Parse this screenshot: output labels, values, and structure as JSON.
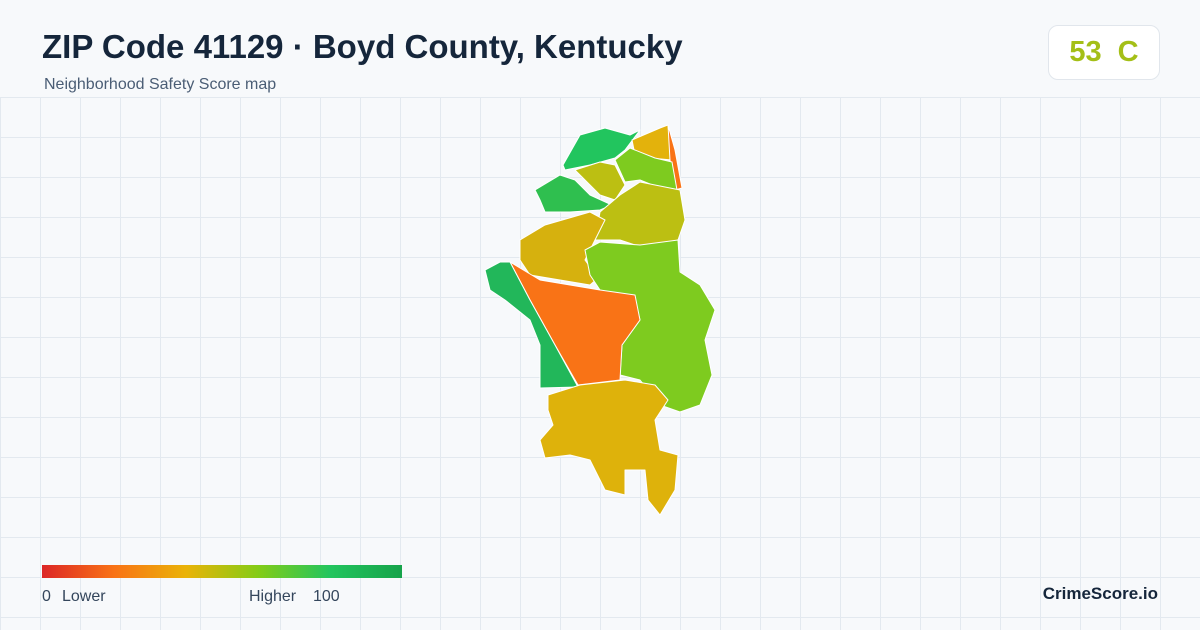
{
  "header": {
    "title": "ZIP Code 41129 · Boyd County, Kentucky",
    "subtitle": "Neighborhood Safety Score map"
  },
  "badge": {
    "score": "53",
    "grade": "C",
    "color": "#a4bf17"
  },
  "legend": {
    "min": "0",
    "low_label": "Lower",
    "high_label": "Higher",
    "max": "100",
    "colors": [
      "#dc2626",
      "#f97316",
      "#eab308",
      "#84cc16",
      "#22c55e",
      "#16a34a"
    ]
  },
  "footer": {
    "brand": "CrimeScore.io"
  }
}
